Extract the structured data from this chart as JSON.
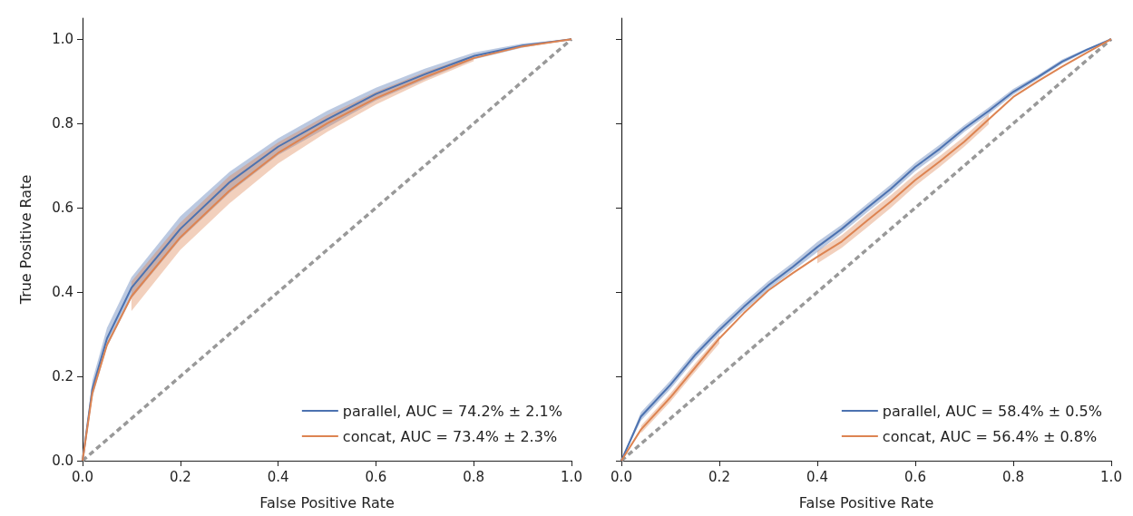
{
  "chart_data": [
    {
      "type": "line",
      "xlabel": "False Positive Rate",
      "ylabel": "True Positive Rate",
      "xlim": [
        0,
        1
      ],
      "ylim": [
        0,
        1.05
      ],
      "xticks": [
        {
          "value": 0,
          "label": "0.0"
        },
        {
          "value": 0.2,
          "label": "0.2"
        },
        {
          "value": 0.4,
          "label": "0.4"
        },
        {
          "value": 0.6,
          "label": "0.6"
        },
        {
          "value": 0.8,
          "label": "0.8"
        },
        {
          "value": 1,
          "label": "1.0"
        }
      ],
      "yticks": [
        {
          "value": 0,
          "label": "0.0"
        },
        0.2,
        0.4,
        0.6,
        0.8,
        {
          "value": 1,
          "label": "1.0"
        }
      ],
      "grid": false,
      "legend": "bottom right",
      "marker": "none",
      "series": [
        {
          "name": "parallel, AUC = 74.2% ± 2.1%",
          "color": "#4c72b0",
          "x": [
            0,
            0.02,
            0.05,
            0.1,
            0.2,
            0.3,
            0.4,
            0.5,
            0.6,
            0.7,
            0.8,
            0.9,
            1
          ],
          "values": [
            0,
            0.17,
            0.29,
            0.41,
            0.55,
            0.66,
            0.745,
            0.81,
            0.87,
            0.917,
            0.96,
            0.985,
            1
          ],
          "lower": [
            0,
            0.15,
            0.27,
            0.385,
            0.525,
            0.635,
            0.725,
            0.79,
            0.855,
            0.905,
            0.952,
            0.98,
            1
          ],
          "upper": [
            0,
            0.19,
            0.315,
            0.435,
            0.58,
            0.685,
            0.765,
            0.83,
            0.885,
            0.93,
            0.968,
            0.99,
            1
          ]
        },
        {
          "name": "concat, AUC = 73.4% ± 2.3%",
          "color": "#dd8452",
          "x": [
            0,
            0.02,
            0.05,
            0.1,
            0.2,
            0.3,
            0.4,
            0.5,
            0.6,
            0.7,
            0.8,
            0.9,
            1
          ],
          "values": [
            0,
            0.16,
            0.275,
            0.39,
            0.53,
            0.64,
            0.73,
            0.8,
            0.86,
            0.91,
            0.955,
            0.983,
            1
          ],
          "lower": [
            null,
            null,
            null,
            0.355,
            0.5,
            0.61,
            0.705,
            0.78,
            0.845,
            0.9,
            0.948,
            null,
            null
          ],
          "upper": [
            null,
            null,
            null,
            0.425,
            0.565,
            0.675,
            0.755,
            0.82,
            0.875,
            0.922,
            0.962,
            null,
            null
          ]
        },
        {
          "color": "#999999",
          "line_style": "dashed",
          "x": [
            0,
            1
          ],
          "values": [
            0,
            1
          ]
        }
      ]
    },
    {
      "type": "line",
      "xlabel": "False Positive Rate",
      "xlim": [
        0,
        1
      ],
      "ylim": [
        0,
        1.05
      ],
      "xticks": [
        {
          "value": 0,
          "label": "0.0"
        },
        0.2,
        0.4,
        0.6,
        0.8,
        {
          "value": 1,
          "label": "1.0"
        }
      ],
      "yticks": [
        0,
        0.2,
        0.4,
        0.6,
        0.8,
        1
      ],
      "tick_labels": "x",
      "grid": false,
      "legend": "bottom right",
      "marker": "none",
      "series": [
        {
          "name": "parallel, AUC = 58.4% ± 0.5%",
          "color": "#4c72b0",
          "x": [
            0,
            0.04,
            0.1,
            0.15,
            0.2,
            0.25,
            0.3,
            0.35,
            0.4,
            0.45,
            0.5,
            0.55,
            0.6,
            0.65,
            0.7,
            0.75,
            0.8,
            0.85,
            0.9,
            0.95,
            1
          ],
          "values": [
            0,
            0.105,
            0.18,
            0.25,
            0.31,
            0.365,
            0.416,
            0.46,
            0.507,
            0.55,
            0.598,
            0.645,
            0.697,
            0.74,
            0.788,
            0.83,
            0.875,
            0.91,
            0.947,
            0.975,
            1
          ],
          "lower": [
            0,
            0.095,
            0.17,
            0.24,
            0.3,
            0.355,
            0.406,
            0.45,
            0.495,
            0.54,
            0.588,
            0.635,
            0.687,
            0.73,
            0.78,
            0.822,
            0.868,
            0.905,
            0.942,
            0.972,
            1
          ],
          "upper": [
            0,
            0.115,
            0.19,
            0.26,
            0.32,
            0.375,
            0.426,
            0.47,
            0.519,
            0.56,
            0.608,
            0.655,
            0.707,
            0.75,
            0.796,
            0.838,
            0.882,
            0.915,
            0.952,
            0.978,
            1
          ]
        },
        {
          "name": "concat, AUC = 56.4% ± 0.8%",
          "color": "#dd8452",
          "x": [
            0,
            0.04,
            0.1,
            0.15,
            0.2,
            0.25,
            0.3,
            0.35,
            0.4,
            0.45,
            0.5,
            0.55,
            0.6,
            0.65,
            0.7,
            0.75,
            0.8,
            0.85,
            0.9,
            0.95,
            1
          ],
          "values": [
            0,
            0.074,
            0.15,
            0.22,
            0.29,
            0.35,
            0.404,
            0.445,
            0.484,
            0.52,
            0.568,
            0.615,
            0.666,
            0.71,
            0.757,
            0.81,
            0.863,
            0.9,
            0.935,
            0.968,
            1
          ],
          "lower": [
            null,
            0.065,
            0.14,
            0.21,
            0.278,
            null,
            null,
            null,
            0.468,
            0.505,
            0.552,
            0.6,
            0.652,
            0.697,
            0.745,
            0.798,
            null,
            null,
            null,
            null,
            null
          ],
          "upper": [
            null,
            0.083,
            0.16,
            0.23,
            0.298,
            null,
            null,
            null,
            0.497,
            0.535,
            0.584,
            0.63,
            0.68,
            0.723,
            0.769,
            0.822,
            null,
            null,
            null,
            null,
            null
          ]
        },
        {
          "color": "#999999",
          "line_style": "dashed",
          "x": [
            0,
            1
          ],
          "values": [
            0,
            1
          ]
        }
      ]
    }
  ]
}
